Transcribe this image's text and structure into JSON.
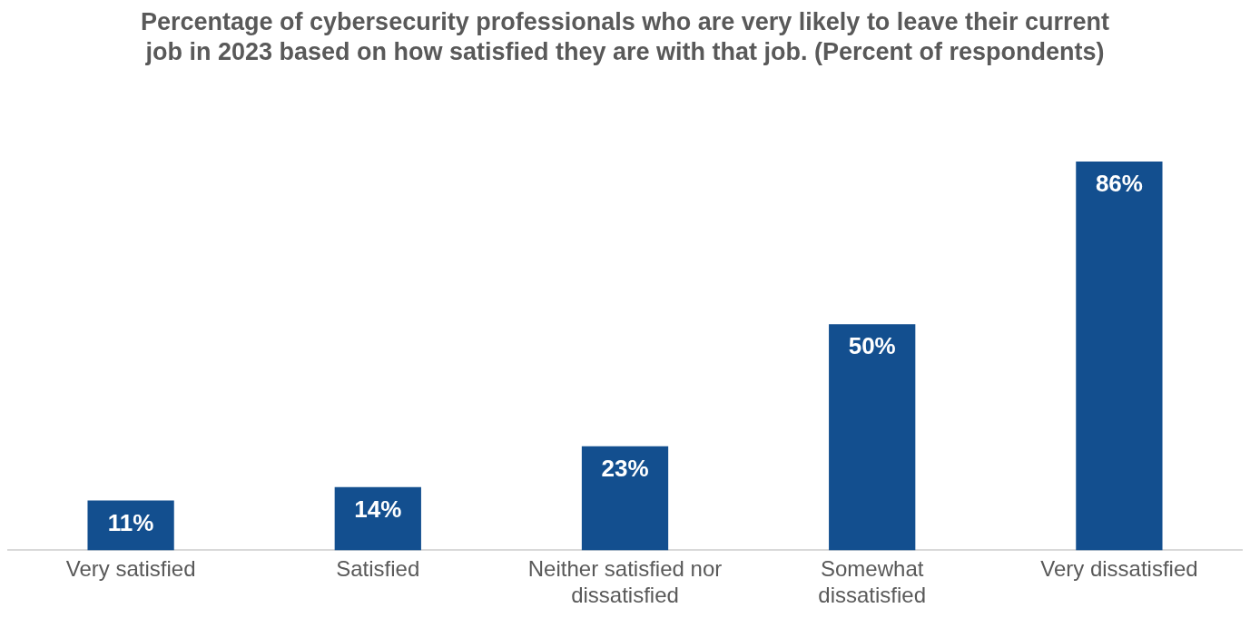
{
  "chart_data": {
    "type": "bar",
    "title": "Percentage of cybersecurity professionals who are very likely to leave their current job in 2023 based on how satisfied they are with that job. (Percent of respondents)",
    "categories": [
      "Very satisfied",
      "Satisfied",
      "Neither satisfied nor dissatisfied",
      "Somewhat dissatisfied",
      "Very dissatisfied"
    ],
    "values": [
      11,
      14,
      23,
      50,
      86
    ],
    "value_labels": [
      "11%",
      "14%",
      "23%",
      "50%",
      "86%"
    ],
    "color": "#134f8f",
    "grid": false,
    "legend": false
  }
}
